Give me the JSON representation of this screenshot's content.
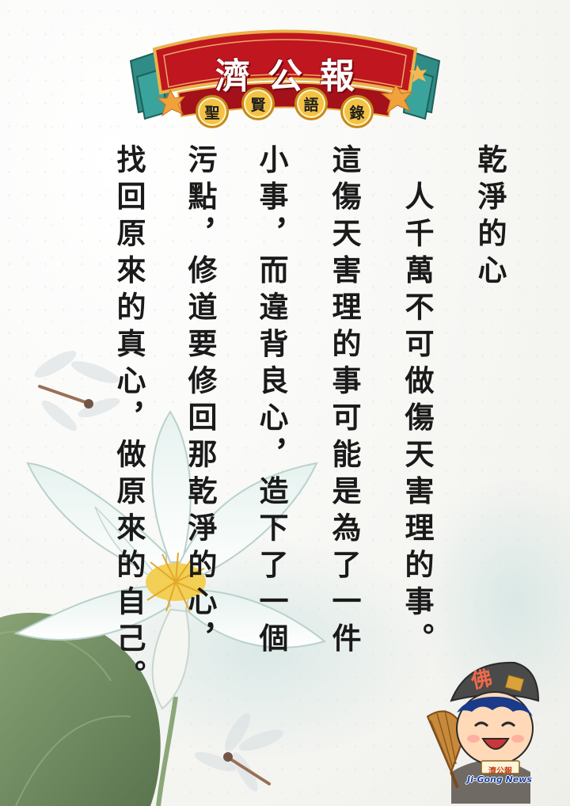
{
  "banner": {
    "title": "濟公報",
    "subtitle_chars": [
      "聖",
      "賢",
      "語",
      "錄"
    ]
  },
  "article": {
    "title": "乾淨的心",
    "columns": [
      "乾淨的心",
      "　人千萬不可做傷天害理的事。",
      "這傷天害理的事可能是為了一件",
      "小事，而違背良心，造下了一個",
      "污點，修道要修回那乾淨的心，",
      "找回原來的真心，做原來的自己。"
    ]
  },
  "mascot": {
    "hat_char": "佛",
    "sign_text": "濟公報",
    "brand": "Ji-Gong News"
  },
  "colors": {
    "banner_red": "#c0161f",
    "banner_teal": "#2f8c86",
    "badge_gold": "#f3c245",
    "text": "#1a1a1a",
    "lotus_leaf": "#5e7c4e"
  }
}
